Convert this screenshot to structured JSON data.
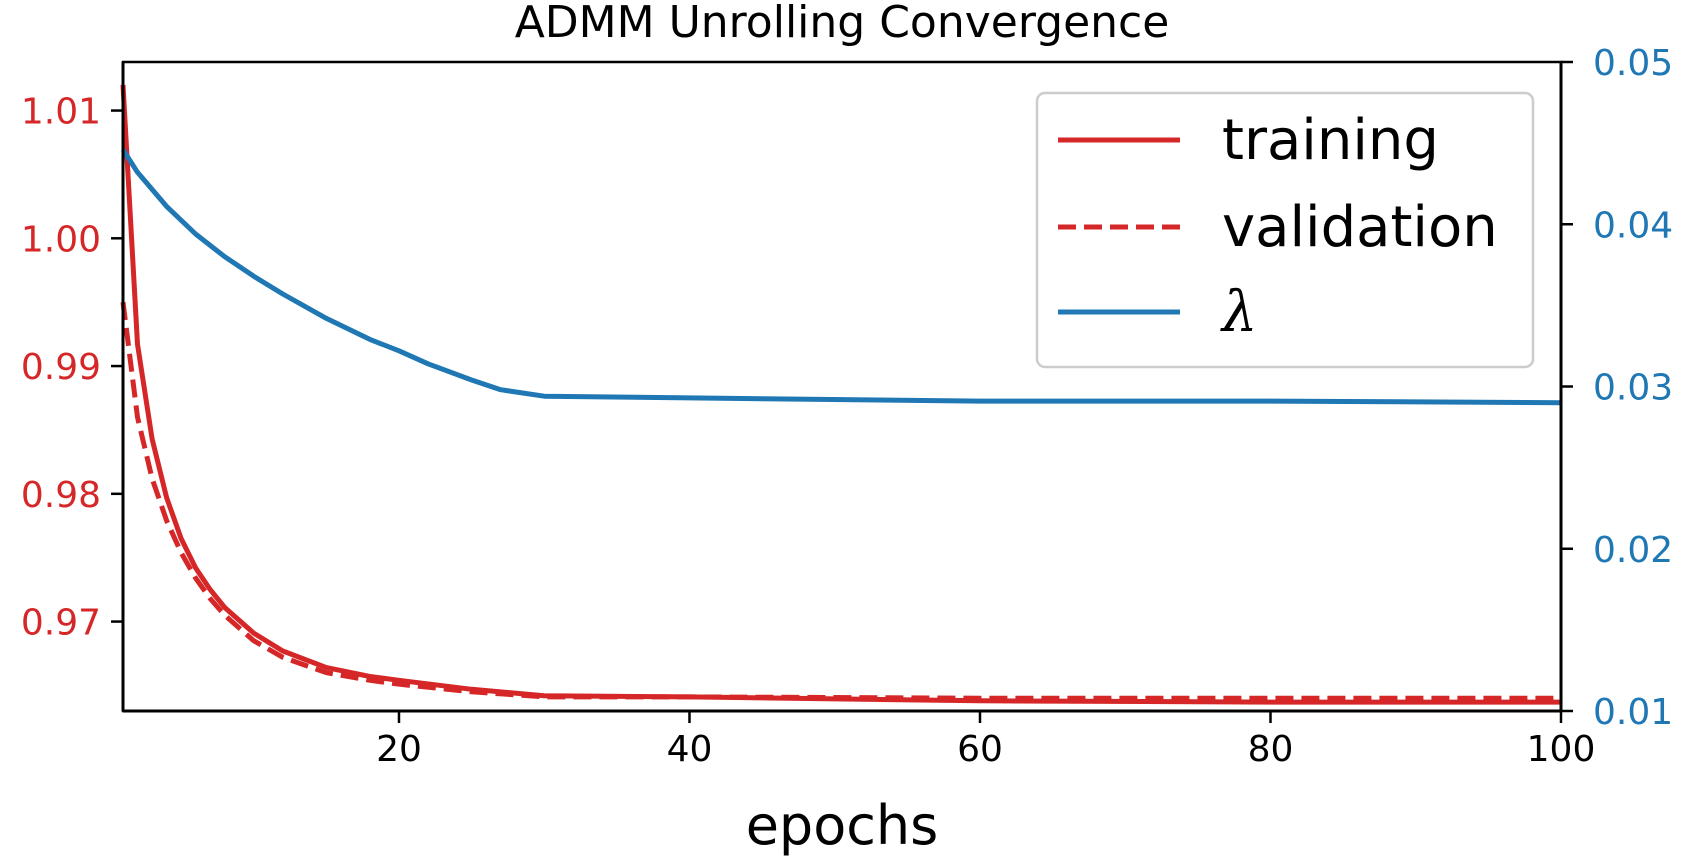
{
  "chart_data": {
    "type": "line",
    "title": "ADMM Unrolling Convergence",
    "xlabel": "epochs",
    "ylabel": "",
    "ylabel_right": "",
    "xlim": [
      1,
      100
    ],
    "ylim": [
      0.963,
      1.0138
    ],
    "ylim_right": [
      0.01,
      0.05
    ],
    "xticks": [
      20,
      40,
      60,
      80,
      100
    ],
    "yticks_left": [
      0.97,
      0.98,
      0.99,
      1.0,
      1.01
    ],
    "yticks_left_labels": [
      "0.97",
      "0.98",
      "0.99",
      "1.00",
      "1.01"
    ],
    "yticks_right": [
      0.01,
      0.02,
      0.03,
      0.04,
      0.05
    ],
    "yticks_right_labels": [
      "0.01",
      "0.02",
      "0.03",
      "0.04",
      "0.05"
    ],
    "left_axis_color": "#d62728",
    "right_axis_color": "#1f77b4",
    "grid": false,
    "legend_position": "top-right",
    "series": [
      {
        "name": "training",
        "axis": "left",
        "color": "#d62728",
        "style": "solid",
        "x": [
          1,
          2,
          3,
          4,
          5,
          6,
          7,
          8,
          10,
          12,
          15,
          18,
          20,
          25,
          30,
          40,
          60,
          80,
          100
        ],
        "y": [
          1.012,
          0.9917,
          0.9843,
          0.9797,
          0.9765,
          0.9742,
          0.9725,
          0.9711,
          0.9691,
          0.9677,
          0.9664,
          0.9657,
          0.9654,
          0.9647,
          0.9642,
          0.9641,
          0.9638,
          0.9637,
          0.9637
        ]
      },
      {
        "name": "validation",
        "axis": "left",
        "color": "#d62728",
        "style": "dashed",
        "x": [
          1,
          2,
          3,
          4,
          5,
          6,
          7,
          8,
          10,
          12,
          15,
          18,
          20,
          25,
          30,
          40,
          60,
          80,
          100
        ],
        "y": [
          0.995,
          0.986,
          0.9812,
          0.9779,
          0.9754,
          0.9734,
          0.9718,
          0.9705,
          0.9685,
          0.9672,
          0.966,
          0.9654,
          0.9651,
          0.9645,
          0.9641,
          0.9641,
          0.964,
          0.964,
          0.964
        ]
      },
      {
        "name": "λ",
        "axis": "right",
        "color": "#1f77b4",
        "style": "solid",
        "x": [
          1,
          2,
          4,
          6,
          8,
          10,
          12,
          15,
          18,
          20,
          22,
          25,
          27,
          30,
          40,
          60,
          80,
          100
        ],
        "y": [
          0.0446,
          0.0432,
          0.0411,
          0.0394,
          0.038,
          0.0368,
          0.0357,
          0.0342,
          0.0329,
          0.0322,
          0.0314,
          0.0304,
          0.0298,
          0.0294,
          0.0293,
          0.0291,
          0.0291,
          0.029
        ]
      }
    ]
  }
}
